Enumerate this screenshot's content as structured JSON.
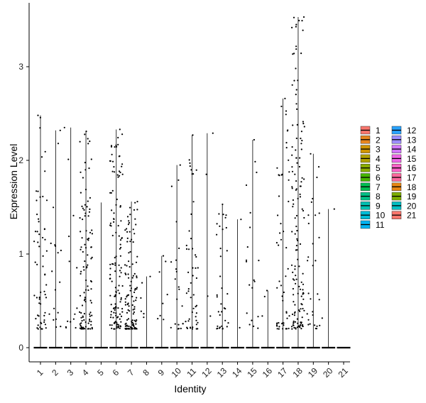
{
  "chart_data": {
    "type": "violin",
    "title": "",
    "xlabel": "Identity",
    "ylabel": "Expression Level",
    "ylim": [
      -0.16,
      3.6
    ],
    "yticks": [
      0,
      1,
      2,
      3
    ],
    "grid": false,
    "legend_position": "right",
    "categories": [
      "1",
      "2",
      "3",
      "4",
      "5",
      "6",
      "7",
      "8",
      "9",
      "10",
      "11",
      "12",
      "13",
      "14",
      "15",
      "16",
      "17",
      "18",
      "19",
      "20",
      "21"
    ],
    "colors": [
      "#F8766D",
      "#E7851E",
      "#D09400",
      "#B2A100",
      "#89AC00",
      "#45B500",
      "#00BC51",
      "#00C087",
      "#00C0B2",
      "#00BCD6",
      "#00B3F2",
      "#29A3FF",
      "#9C8DFF",
      "#D277FF",
      "#F166E8",
      "#FF61C7",
      "#FF689E",
      "#E68613",
      "#7CAE00",
      "#00BFC4",
      "#F8766D"
    ],
    "max_values": [
      2.48,
      2.32,
      2.35,
      2.31,
      1.55,
      2.33,
      1.56,
      0.76,
      0.98,
      1.95,
      2.27,
      2.29,
      1.53,
      1.37,
      2.22,
      0.61,
      2.66,
      3.53,
      2.07,
      1.48,
      0.0
    ]
  },
  "axes": {
    "yticks": [
      "0",
      "1",
      "2",
      "3"
    ],
    "xticks": [
      "1",
      "2",
      "3",
      "4",
      "5",
      "6",
      "7",
      "8",
      "9",
      "10",
      "11",
      "12",
      "13",
      "14",
      "15",
      "16",
      "17",
      "18",
      "19",
      "20",
      "21"
    ]
  },
  "legend": {
    "col1": [
      "1",
      "2",
      "3",
      "4",
      "5",
      "6",
      "7",
      "8",
      "9",
      "10",
      "11"
    ],
    "col2": [
      "12",
      "13",
      "14",
      "15",
      "16",
      "17",
      "18",
      "19",
      "20",
      "21"
    ]
  }
}
